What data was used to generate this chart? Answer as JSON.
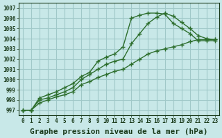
{
  "background_color": "#c8e8e8",
  "grid_color": "#a0c8c8",
  "line_color": "#2d6e2d",
  "marker_color": "#2d6e2d",
  "xlabel": "Graphe pression niveau de la mer (hPa)",
  "xlabel_fontsize": 8,
  "ylabel_values": [
    997,
    998,
    999,
    1000,
    1001,
    1002,
    1003,
    1004,
    1005,
    1006,
    1007
  ],
  "xlim": [
    -0.5,
    23.5
  ],
  "ylim": [
    996.5,
    1007.5
  ],
  "xtick_labels": [
    "0",
    "1",
    "2",
    "3",
    "4",
    "5",
    "6",
    "7",
    "8",
    "9",
    "10",
    "11",
    "12",
    "13",
    "14",
    "15",
    "16",
    "17",
    "18",
    "19",
    "20",
    "21",
    "22",
    "23"
  ],
  "line1_x": [
    0,
    1,
    2,
    3,
    4,
    5,
    6,
    7,
    8,
    9,
    10,
    11,
    12,
    13,
    14,
    15,
    16,
    17,
    18,
    19,
    20,
    21,
    22,
    23
  ],
  "line1_y": [
    997.0,
    997.0,
    998.2,
    998.5,
    998.8,
    999.2,
    999.6,
    1000.3,
    1000.7,
    1001.8,
    1002.2,
    1002.5,
    1003.2,
    1006.0,
    1006.3,
    1006.5,
    1006.5,
    1006.4,
    1005.5,
    1005.0,
    1004.5,
    1003.8,
    1003.8,
    1003.8
  ],
  "line2_x": [
    0,
    1,
    2,
    3,
    4,
    5,
    6,
    7,
    8,
    9,
    10,
    11,
    12,
    13,
    14,
    15,
    16,
    17,
    18,
    19,
    20,
    21,
    22,
    23
  ],
  "line2_y": [
    997.0,
    997.0,
    998.0,
    998.2,
    998.5,
    998.8,
    999.2,
    1000.0,
    1000.5,
    1001.0,
    1001.5,
    1001.8,
    1002.0,
    1003.5,
    1004.5,
    1005.5,
    1006.1,
    1006.5,
    1006.2,
    1005.6,
    1005.0,
    1004.3,
    1004.0,
    1003.9
  ],
  "line3_x": [
    0,
    1,
    2,
    3,
    4,
    5,
    6,
    7,
    8,
    9,
    10,
    11,
    12,
    13,
    14,
    15,
    16,
    17,
    18,
    19,
    20,
    21,
    22,
    23
  ],
  "line3_y": [
    997.0,
    997.0,
    997.7,
    998.0,
    998.3,
    998.5,
    998.8,
    999.5,
    999.8,
    1000.2,
    1000.5,
    1000.8,
    1001.0,
    1001.5,
    1002.0,
    1002.5,
    1002.8,
    1003.0,
    1003.2,
    1003.4,
    1003.7,
    1003.9,
    1003.9,
    1003.9
  ]
}
